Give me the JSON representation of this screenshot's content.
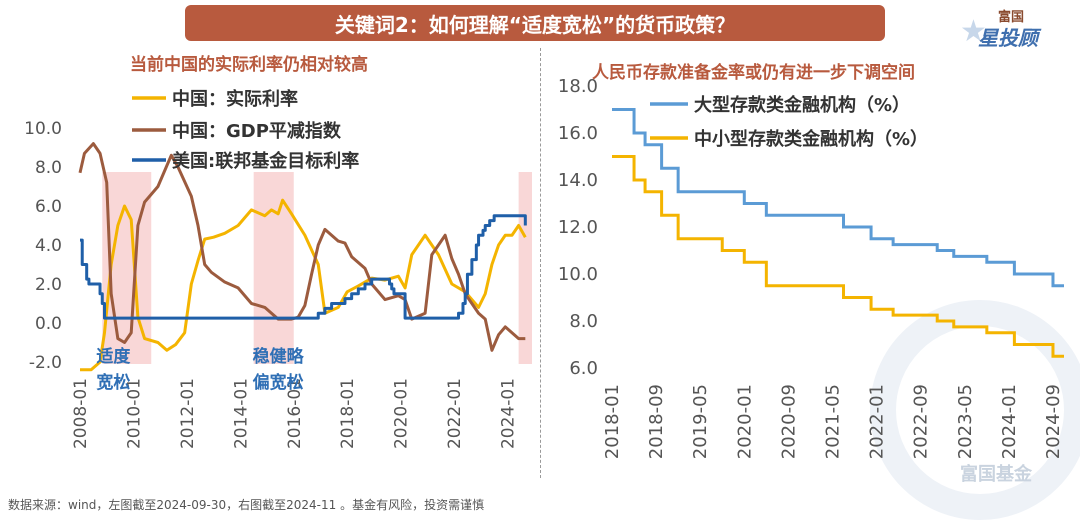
{
  "header": {
    "title": "关键词2：如何理解“适度宽松”的货币政策？",
    "brand_top": "富国",
    "brand_main": "星投顾"
  },
  "footnote": "数据来源：wind，左图截至2024-09-30，右图截至2024-11 。基金有风险，投资需谨慎",
  "watermark": "富国基金",
  "colors": {
    "china_real_rate": "#f4b400",
    "gdp_deflator": "#9c5b3e",
    "us_fed_rate": "#1f5fa8",
    "large_inst": "#5b9bd5",
    "small_inst": "#f4b400",
    "highlight": "#f7c9c9"
  },
  "chart_data": [
    {
      "type": "line",
      "title": "当前中国的实际利率仍相对较高",
      "xlabel": "",
      "ylabel": "",
      "ylim": [
        -2.0,
        10.0
      ],
      "yticks": [
        "-2.0",
        "0.0",
        "2.0",
        "4.0",
        "6.0",
        "8.0",
        "10.0"
      ],
      "xticks": [
        "2008-01",
        "2010-01",
        "2012-01",
        "2014-01",
        "2016-01",
        "2018-01",
        "2020-01",
        "2022-01",
        "2024-01"
      ],
      "highlight_periods": [
        [
          "2008-11",
          "2010-09"
        ],
        [
          "2014-07",
          "2016-01"
        ],
        [
          "2024-06",
          "2024-12"
        ]
      ],
      "annotations": [
        {
          "lines": [
            "适度",
            "宽松"
          ],
          "x": "2009-04"
        },
        {
          "lines": [
            "稳健略",
            "偏宽松"
          ],
          "x": "2015-06"
        }
      ],
      "series": [
        {
          "name": "中国：实际利率",
          "points": [
            [
              "2008-01",
              -3.5
            ],
            [
              "2008-06",
              -3.0
            ],
            [
              "2008-10",
              -2.0
            ],
            [
              "2008-12",
              -0.5
            ],
            [
              "2009-03",
              3.0
            ],
            [
              "2009-06",
              5.0
            ],
            [
              "2009-09",
              6.0
            ],
            [
              "2009-12",
              5.3
            ],
            [
              "2010-03",
              0.3
            ],
            [
              "2010-06",
              -0.8
            ],
            [
              "2010-12",
              -1.0
            ],
            [
              "2011-04",
              -1.4
            ],
            [
              "2011-08",
              -1.1
            ],
            [
              "2011-12",
              -0.5
            ],
            [
              "2012-03",
              2.0
            ],
            [
              "2012-06",
              3.2
            ],
            [
              "2012-09",
              4.3
            ],
            [
              "2013-01",
              4.4
            ],
            [
              "2013-06",
              4.6
            ],
            [
              "2013-12",
              5.0
            ],
            [
              "2014-06",
              5.8
            ],
            [
              "2014-12",
              5.5
            ],
            [
              "2015-03",
              5.8
            ],
            [
              "2015-06",
              5.6
            ],
            [
              "2015-08",
              6.3
            ],
            [
              "2015-12",
              5.6
            ],
            [
              "2016-06",
              4.5
            ],
            [
              "2016-12",
              3.0
            ],
            [
              "2017-03",
              0.5
            ],
            [
              "2017-09",
              0.8
            ],
            [
              "2018-01",
              1.6
            ],
            [
              "2018-06",
              1.9
            ],
            [
              "2018-12",
              2.3
            ],
            [
              "2019-06",
              2.2
            ],
            [
              "2019-12",
              2.4
            ],
            [
              "2020-03",
              1.8
            ],
            [
              "2020-06",
              3.5
            ],
            [
              "2020-12",
              4.5
            ],
            [
              "2021-06",
              3.5
            ],
            [
              "2021-12",
              2.0
            ],
            [
              "2022-06",
              1.6
            ],
            [
              "2022-12",
              0.8
            ],
            [
              "2023-03",
              1.5
            ],
            [
              "2023-06",
              3.0
            ],
            [
              "2023-09",
              4.0
            ],
            [
              "2023-12",
              4.5
            ],
            [
              "2024-03",
              4.5
            ],
            [
              "2024-06",
              5.0
            ],
            [
              "2024-09",
              4.4
            ]
          ]
        },
        {
          "name": "中国：GDP平减指数",
          "points": [
            [
              "2008-01",
              7.7
            ],
            [
              "2008-03",
              8.7
            ],
            [
              "2008-07",
              9.2
            ],
            [
              "2008-10",
              8.7
            ],
            [
              "2009-01",
              7.2
            ],
            [
              "2009-03",
              1.5
            ],
            [
              "2009-06",
              -0.8
            ],
            [
              "2009-09",
              -1.0
            ],
            [
              "2009-12",
              -0.5
            ],
            [
              "2010-03",
              5.0
            ],
            [
              "2010-06",
              6.2
            ],
            [
              "2010-12",
              7.0
            ],
            [
              "2011-03",
              7.8
            ],
            [
              "2011-06",
              8.6
            ],
            [
              "2011-09",
              8.0
            ],
            [
              "2012-03",
              6.5
            ],
            [
              "2012-06",
              5.0
            ],
            [
              "2012-09",
              3.0
            ],
            [
              "2012-12",
              2.6
            ],
            [
              "2013-06",
              2.1
            ],
            [
              "2013-12",
              1.8
            ],
            [
              "2014-06",
              1.0
            ],
            [
              "2014-12",
              0.8
            ],
            [
              "2015-06",
              0.2
            ],
            [
              "2015-12",
              0.2
            ],
            [
              "2016-03",
              0.3
            ],
            [
              "2016-06",
              0.9
            ],
            [
              "2016-09",
              2.5
            ],
            [
              "2016-12",
              4.0
            ],
            [
              "2017-03",
              4.8
            ],
            [
              "2017-09",
              4.2
            ],
            [
              "2017-12",
              4.1
            ],
            [
              "2018-03",
              3.4
            ],
            [
              "2018-09",
              2.8
            ],
            [
              "2018-12",
              2.0
            ],
            [
              "2019-06",
              1.2
            ],
            [
              "2019-12",
              1.4
            ],
            [
              "2020-03",
              1.2
            ],
            [
              "2020-06",
              0.2
            ],
            [
              "2020-12",
              0.5
            ],
            [
              "2021-03",
              3.5
            ],
            [
              "2021-06",
              4.0
            ],
            [
              "2021-09",
              4.5
            ],
            [
              "2021-12",
              3.3
            ],
            [
              "2022-03",
              2.5
            ],
            [
              "2022-06",
              1.5
            ],
            [
              "2022-12",
              0.5
            ],
            [
              "2023-03",
              0.2
            ],
            [
              "2023-06",
              -1.4
            ],
            [
              "2023-09",
              -0.6
            ],
            [
              "2023-12",
              -0.2
            ],
            [
              "2024-03",
              -0.5
            ],
            [
              "2024-06",
              -0.8
            ],
            [
              "2024-09",
              -0.8
            ]
          ]
        },
        {
          "name": "美国:联邦基金目标利率",
          "points": [
            [
              "2008-01",
              4.25
            ],
            [
              "2008-02",
              3.0
            ],
            [
              "2008-04",
              2.25
            ],
            [
              "2008-05",
              2.0
            ],
            [
              "2008-10",
              1.5
            ],
            [
              "2008-11",
              1.0
            ],
            [
              "2008-12",
              0.25
            ],
            [
              "2015-12",
              0.25
            ],
            [
              "2016-12",
              0.5
            ],
            [
              "2017-03",
              0.75
            ],
            [
              "2017-06",
              1.0
            ],
            [
              "2017-12",
              1.25
            ],
            [
              "2018-03",
              1.5
            ],
            [
              "2018-06",
              1.75
            ],
            [
              "2018-09",
              2.0
            ],
            [
              "2018-12",
              2.25
            ],
            [
              "2019-07",
              2.25
            ],
            [
              "2019-08",
              2.0
            ],
            [
              "2019-09",
              1.75
            ],
            [
              "2019-10",
              1.5
            ],
            [
              "2020-03",
              0.25
            ],
            [
              "2022-02",
              0.25
            ],
            [
              "2022-03",
              0.5
            ],
            [
              "2022-05",
              1.0
            ],
            [
              "2022-06",
              1.5
            ],
            [
              "2022-07",
              2.5
            ],
            [
              "2022-09",
              3.25
            ],
            [
              "2022-11",
              4.0
            ],
            [
              "2022-12",
              4.5
            ],
            [
              "2023-02",
              4.75
            ],
            [
              "2023-03",
              5.0
            ],
            [
              "2023-05",
              5.25
            ],
            [
              "2023-07",
              5.5
            ],
            [
              "2024-09",
              5.5
            ],
            [
              "2024-09",
              5.0
            ]
          ]
        }
      ]
    },
    {
      "type": "line",
      "title": "人民币存款准备金率或仍有进一步下调空间",
      "xlabel": "",
      "ylabel": "",
      "ylim": [
        6.0,
        18.0
      ],
      "yticks": [
        "6.0",
        "8.0",
        "10.0",
        "12.0",
        "14.0",
        "16.0",
        "18.0"
      ],
      "xticks": [
        "2018-01",
        "2018-09",
        "2019-05",
        "2020-01",
        "2020-09",
        "2021-05",
        "2022-01",
        "2022-09",
        "2023-05",
        "2024-01",
        "2024-09"
      ],
      "series": [
        {
          "name": "大型存款类金融机构（%）",
          "points": [
            [
              "2018-01",
              17.0
            ],
            [
              "2018-05",
              16.0
            ],
            [
              "2018-07",
              15.5
            ],
            [
              "2018-10",
              14.5
            ],
            [
              "2019-01",
              13.5
            ],
            [
              "2019-09",
              13.5
            ],
            [
              "2019-10",
              13.5
            ],
            [
              "2020-01",
              13.0
            ],
            [
              "2020-05",
              12.5
            ],
            [
              "2021-07",
              12.0
            ],
            [
              "2021-12",
              11.5
            ],
            [
              "2022-04",
              11.25
            ],
            [
              "2022-12",
              11.0
            ],
            [
              "2023-03",
              10.75
            ],
            [
              "2023-09",
              10.5
            ],
            [
              "2024-02",
              10.0
            ],
            [
              "2024-09",
              9.5
            ],
            [
              "2024-11",
              9.5
            ]
          ]
        },
        {
          "name": "中小型存款类金融机构（%）",
          "points": [
            [
              "2018-01",
              15.0
            ],
            [
              "2018-05",
              14.0
            ],
            [
              "2018-07",
              13.5
            ],
            [
              "2018-10",
              12.5
            ],
            [
              "2019-01",
              11.5
            ],
            [
              "2019-09",
              11.0
            ],
            [
              "2019-10",
              11.0
            ],
            [
              "2020-01",
              10.5
            ],
            [
              "2020-05",
              9.5
            ],
            [
              "2021-07",
              9.0
            ],
            [
              "2021-12",
              8.5
            ],
            [
              "2022-04",
              8.25
            ],
            [
              "2022-12",
              8.0
            ],
            [
              "2023-03",
              7.75
            ],
            [
              "2023-09",
              7.5
            ],
            [
              "2024-02",
              7.0
            ],
            [
              "2024-09",
              6.5
            ],
            [
              "2024-11",
              6.5
            ]
          ]
        }
      ]
    }
  ]
}
